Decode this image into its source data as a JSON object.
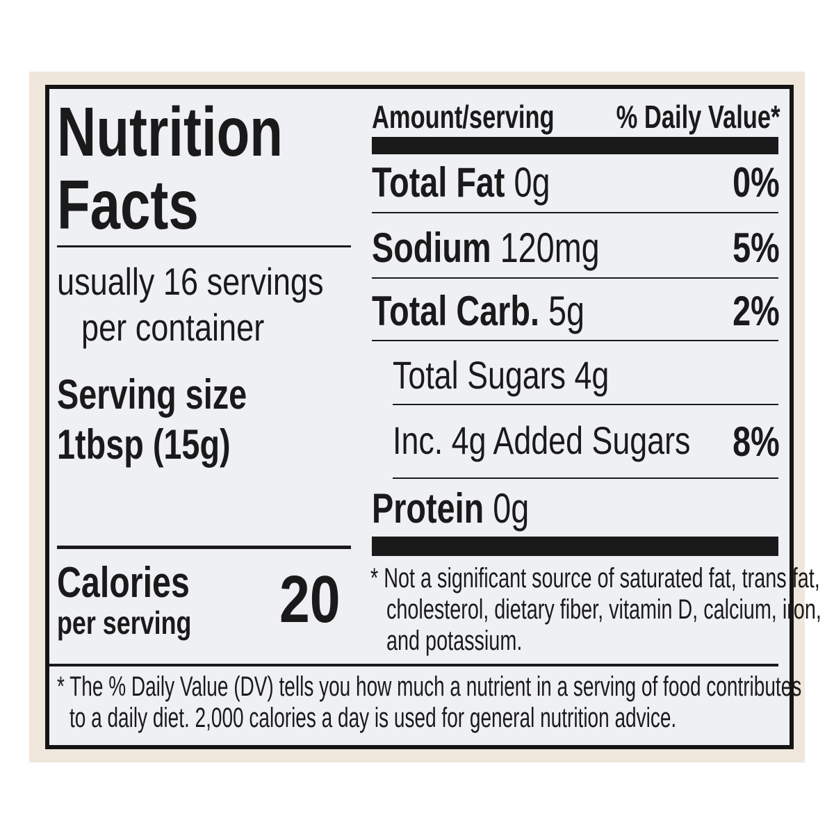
{
  "title_line1": "Nutrition",
  "title_line2": "Facts",
  "servings_line1": "usually 16 servings",
  "servings_line2": "per container",
  "serving_size_label": "Serving size",
  "serving_size_value": "1tbsp (15g)",
  "calories_label": "Calories",
  "calories_sub": "per serving",
  "calories_value": "20",
  "header": {
    "amount": "Amount/serving",
    "dv": "% Daily Value*"
  },
  "nutrients": [
    {
      "name": "Total Fat",
      "amount": "0g",
      "dv": "0%"
    },
    {
      "name": "Sodium",
      "amount": "120mg",
      "dv": "5%"
    },
    {
      "name": "Total Carb.",
      "amount": "5g",
      "dv": "2%"
    },
    {
      "name": "Total Sugars 4g",
      "amount": "",
      "dv": ""
    },
    {
      "name": "Inc. 4g Added Sugars",
      "amount": "",
      "dv": "8%"
    },
    {
      "name": "Protein",
      "amount": "0g",
      "dv": ""
    }
  ],
  "footnote_lines": [
    "* Not a significant source of saturated fat, trans fat,",
    "cholesterol, dietary fiber, vitamin D, calcium, iron,",
    "and potassium."
  ],
  "dv_note_lines": [
    "* The % Daily Value (DV) tells you how much a nutrient in a serving of food contributes",
    "to a daily diet. 2,000 calories a day is used for general nutrition advice."
  ]
}
